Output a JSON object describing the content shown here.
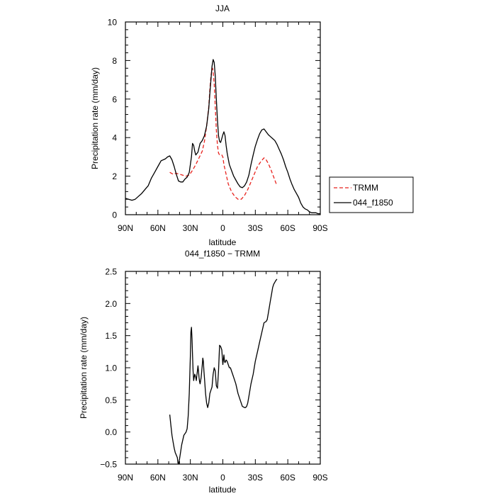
{
  "chart_data": [
    {
      "type": "line",
      "title": "JJA",
      "xlabel": "latitude",
      "ylabel": "Precipitation rate (mm/day)",
      "xlim": [
        90,
        -90
      ],
      "ylim": [
        0,
        10
      ],
      "x_ticks": [
        90,
        60,
        30,
        0,
        -30,
        -60,
        -90
      ],
      "x_tick_labels": [
        "90N",
        "60N",
        "30N",
        "0",
        "30S",
        "60S",
        "90S"
      ],
      "y_ticks": [
        0,
        2,
        4,
        6,
        8,
        10
      ],
      "y_tick_labels": [
        "0",
        "2",
        "4",
        "6",
        "8",
        "10"
      ],
      "legend_position": "right",
      "series": [
        {
          "name": "TRMM",
          "color": "#e8231e",
          "dash": "dashed",
          "x": [
            49,
            46,
            43,
            40,
            37,
            34,
            31,
            28,
            25,
            22,
            19,
            17,
            15,
            13,
            12,
            11,
            10,
            9.5,
            9,
            8,
            7,
            6,
            5,
            4,
            3,
            2,
            1,
            0,
            -1,
            -3,
            -5,
            -8,
            -11,
            -14,
            -17,
            -20,
            -23,
            -26,
            -29,
            -32,
            -35,
            -38,
            -40,
            -42,
            -44,
            -46,
            -48,
            -50
          ],
          "y": [
            2.2,
            2.1,
            2.15,
            2.1,
            2.05,
            2.0,
            2.05,
            2.3,
            2.6,
            2.95,
            3.3,
            3.8,
            4.6,
            5.6,
            6.5,
            7.2,
            7.55,
            7.6,
            7.4,
            6.8,
            5.6,
            4.4,
            3.6,
            3.2,
            3.1,
            3.1,
            3.1,
            3.0,
            2.6,
            2.1,
            1.6,
            1.2,
            0.95,
            0.8,
            0.8,
            1.0,
            1.3,
            1.7,
            2.1,
            2.5,
            2.75,
            2.95,
            2.85,
            2.65,
            2.4,
            2.1,
            1.8,
            1.5
          ]
        },
        {
          "name": "044_f1850",
          "color": "#000000",
          "dash": "solid",
          "x": [
            90,
            87,
            84,
            81,
            78,
            75,
            72,
            69,
            66,
            63,
            60,
            57,
            55,
            53,
            51,
            49,
            47,
            45,
            43,
            41,
            39,
            37,
            35,
            33,
            31,
            29,
            28,
            27,
            26,
            25,
            23,
            21,
            19,
            17,
            15,
            13,
            12,
            11,
            10,
            9,
            8,
            7,
            6,
            5,
            4,
            3,
            2,
            1,
            0,
            -1,
            -2,
            -3,
            -4,
            -5,
            -6,
            -8,
            -10,
            -12,
            -14,
            -16,
            -18,
            -20,
            -22,
            -24,
            -26,
            -28,
            -30,
            -32,
            -34,
            -36,
            -38,
            -40,
            -42,
            -44,
            -46,
            -48,
            -50,
            -52,
            -54,
            -56,
            -58,
            -60,
            -62,
            -64,
            -66,
            -68,
            -70,
            -72,
            -74,
            -76,
            -78,
            -80,
            -82,
            -84,
            -86,
            -88,
            -90
          ],
          "y": [
            0.85,
            0.8,
            0.75,
            0.8,
            0.95,
            1.1,
            1.3,
            1.5,
            1.9,
            2.2,
            2.5,
            2.8,
            2.85,
            2.9,
            3.0,
            3.05,
            2.85,
            2.5,
            2.1,
            1.75,
            1.7,
            1.7,
            1.85,
            1.95,
            2.2,
            3.0,
            3.7,
            3.6,
            3.3,
            3.1,
            3.25,
            3.7,
            3.85,
            4.1,
            4.6,
            5.5,
            6.3,
            7.0,
            7.7,
            8.05,
            7.9,
            7.2,
            6.0,
            4.9,
            4.1,
            3.8,
            3.75,
            3.95,
            4.15,
            4.3,
            4.1,
            3.6,
            3.2,
            2.9,
            2.6,
            2.3,
            2.0,
            1.8,
            1.6,
            1.45,
            1.4,
            1.5,
            1.7,
            2.05,
            2.6,
            3.1,
            3.55,
            3.9,
            4.2,
            4.4,
            4.45,
            4.3,
            4.15,
            4.05,
            3.95,
            3.85,
            3.65,
            3.4,
            3.15,
            2.85,
            2.5,
            2.2,
            1.85,
            1.55,
            1.3,
            1.1,
            0.9,
            0.6,
            0.4,
            0.3,
            0.25,
            0.15,
            0.1,
            0.1,
            0.1,
            0.05,
            0.05
          ]
        }
      ]
    },
    {
      "type": "line",
      "title": "044_f1850 − TRMM",
      "xlabel": "latitude",
      "ylabel": "Precipitation rate (mm/day)",
      "xlim": [
        90,
        -90
      ],
      "ylim": [
        -0.5,
        2.5
      ],
      "x_ticks": [
        90,
        60,
        30,
        0,
        -30,
        -60,
        -90
      ],
      "x_tick_labels": [
        "90N",
        "60N",
        "30N",
        "0",
        "30S",
        "60S",
        "90S"
      ],
      "y_ticks": [
        -0.5,
        0,
        0.5,
        1,
        1.5,
        2,
        2.5
      ],
      "y_tick_labels": [
        "−0.5",
        "0.0",
        "0.5",
        "1.0",
        "1.5",
        "2.0",
        "2.5"
      ],
      "series": [
        {
          "color": "#000000",
          "dash": "solid",
          "x": [
            49,
            48,
            47,
            46,
            45,
            44,
            43,
            42,
            41.5,
            41,
            40,
            38,
            36,
            34,
            33,
            32,
            31,
            30,
            29.5,
            29,
            28.5,
            28,
            27.5,
            27,
            26,
            25,
            24.5,
            24,
            23.5,
            23,
            22.5,
            22,
            21.5,
            21,
            20,
            19,
            18.5,
            18,
            17.5,
            17,
            16,
            15,
            14,
            13,
            12,
            11,
            10,
            9,
            8,
            7,
            6,
            5,
            4,
            3,
            2,
            1,
            0,
            -1,
            -1.5,
            -2,
            -3,
            -4,
            -5,
            -6,
            -7,
            -8,
            -9,
            -10,
            -12,
            -14,
            -16,
            -18,
            -20,
            -21,
            -22,
            -23,
            -24,
            -25,
            -26,
            -28,
            -30,
            -32,
            -34,
            -36,
            -38,
            -40,
            -41,
            -42,
            -43,
            -44,
            -45,
            -46,
            -47,
            -48,
            -49,
            -50
          ],
          "y": [
            0.27,
            0.1,
            -0.05,
            -0.15,
            -0.25,
            -0.32,
            -0.36,
            -0.4,
            -0.48,
            -0.5,
            -0.42,
            -0.2,
            -0.05,
            0.0,
            0.05,
            0.25,
            0.6,
            1.2,
            1.55,
            1.63,
            1.45,
            1.2,
            0.95,
            0.8,
            0.9,
            0.85,
            0.8,
            0.88,
            0.95,
            1.03,
            0.95,
            0.85,
            0.78,
            0.75,
            0.85,
            1.05,
            1.15,
            1.1,
            0.95,
            0.85,
            0.6,
            0.45,
            0.38,
            0.45,
            0.6,
            0.65,
            0.7,
            0.9,
            1.0,
            0.95,
            0.72,
            0.68,
            0.95,
            1.35,
            1.33,
            1.28,
            1.05,
            1.2,
            1.1,
            1.08,
            1.12,
            1.1,
            1.05,
            1.0,
            1.0,
            0.95,
            0.9,
            0.85,
            0.75,
            0.6,
            0.5,
            0.4,
            0.38,
            0.38,
            0.4,
            0.45,
            0.55,
            0.65,
            0.75,
            0.9,
            1.1,
            1.25,
            1.4,
            1.55,
            1.7,
            1.72,
            1.75,
            1.85,
            1.95,
            2.05,
            2.15,
            2.25,
            2.3,
            2.33,
            2.36,
            2.38
          ]
        }
      ]
    }
  ]
}
